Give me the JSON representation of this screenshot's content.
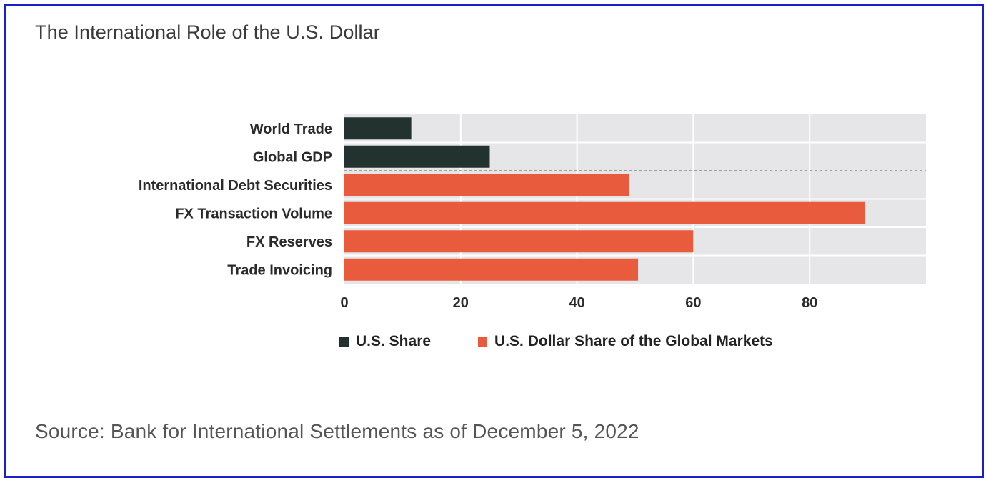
{
  "title": "The International Role of the U.S. Dollar",
  "source": "Source: Bank for International Settlements as of December 5, 2022",
  "colors": {
    "us_share": "#22332f",
    "usd_share": "#e85b3c",
    "plot_bg": "#e6e6e8",
    "grid": "#ffffff",
    "divider": "#888888"
  },
  "chart_data": {
    "type": "bar",
    "orientation": "horizontal",
    "title": "The International Role of the U.S. Dollar",
    "xlabel": "",
    "ylabel": "",
    "xlim": [
      0,
      100
    ],
    "xticks": [
      0,
      20,
      40,
      60,
      80
    ],
    "xtick_labels": [
      "0",
      "20",
      "40",
      "60",
      "80"
    ],
    "categories": [
      "World Trade",
      "Global GDP",
      "International Debt Securities",
      "FX Transaction Volume",
      "FX Reserves",
      "Trade Invoicing"
    ],
    "values": [
      11.5,
      25,
      49,
      89.5,
      60,
      50.5
    ],
    "series_of_bar": [
      "U.S. Share",
      "U.S. Share",
      "U.S. Dollar Share of the Global Markets",
      "U.S. Dollar Share of the Global Markets",
      "U.S. Dollar Share of the Global Markets",
      "U.S. Dollar Share of the Global Markets"
    ],
    "legend": [
      {
        "name": "U.S. Share",
        "color": "#22332f"
      },
      {
        "name": "U.S. Dollar Share of the Global Markets",
        "color": "#e85b3c"
      }
    ],
    "legend_position": "bottom",
    "grid": true
  }
}
